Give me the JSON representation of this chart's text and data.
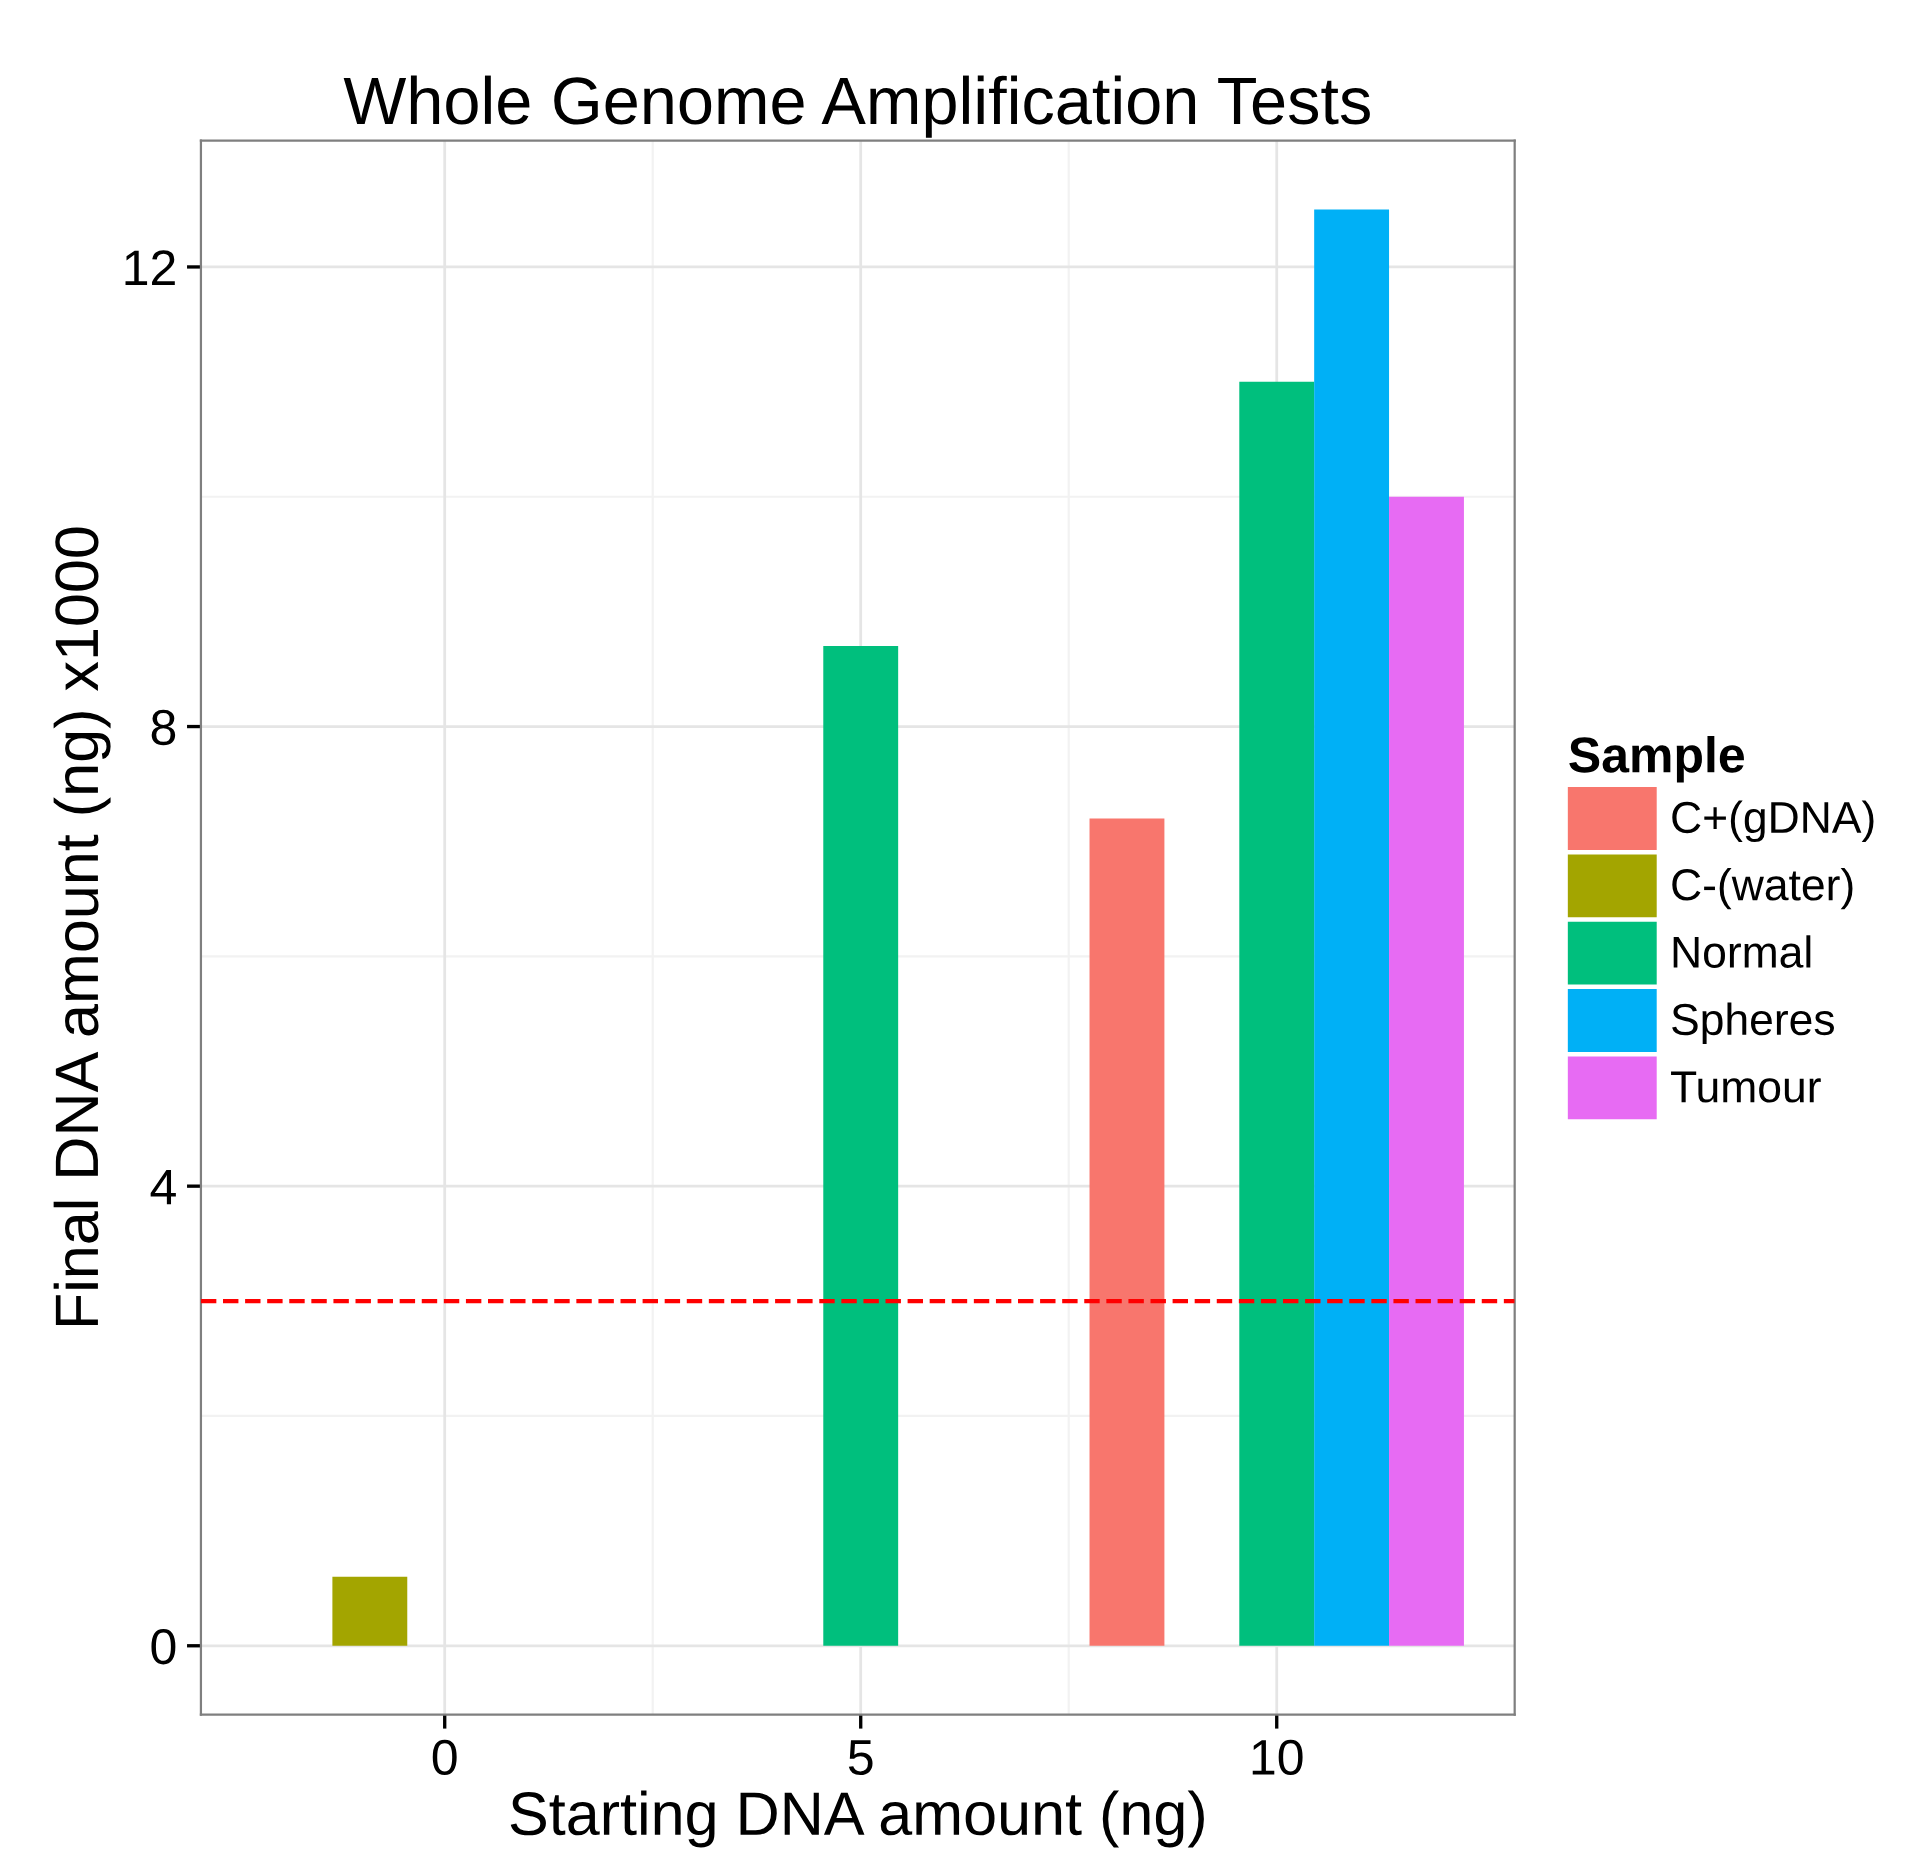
{
  "chart_data": {
    "type": "bar",
    "title": "Whole Genome Amplification Tests",
    "xlabel": "Starting DNA amount (ng)",
    "ylabel": "Final DNA amount (ng) x1000",
    "legend_title": "Sample",
    "legend": "right",
    "series": [
      {
        "name": "C+(gDNA)",
        "color": "#f8766d",
        "x": [
          -1.8,
          3.2,
          8.2
        ],
        "values": [
          0,
          0,
          7.2
        ]
      },
      {
        "name": "C-(water)",
        "color": "#a3a500",
        "x": [
          -0.9,
          4.1,
          9.1
        ],
        "values": [
          0.6,
          0,
          0
        ]
      },
      {
        "name": "Normal",
        "color": "#00bf7d",
        "x": [
          0,
          5,
          10
        ],
        "values": [
          0,
          8.7,
          11.0
        ]
      },
      {
        "name": "Spheres",
        "color": "#00b0f6",
        "x": [
          0.9,
          5.9,
          10.9
        ],
        "values": [
          0,
          0,
          12.5
        ]
      },
      {
        "name": "Tumour",
        "color": "#e76bf3",
        "x": [
          1.8,
          6.8,
          11.8
        ],
        "values": [
          0,
          0,
          10.0
        ]
      }
    ],
    "xlim": [
      -2.93,
      12.86
    ],
    "ylim": [
      -0.6,
      13.1
    ],
    "xticks": [
      0,
      5,
      10
    ],
    "yticks": [
      0,
      4,
      8,
      12
    ],
    "grid": true,
    "ref_lines": [
      {
        "axis": "y",
        "value": 3,
        "color": "#ff0000",
        "line_style": "dashed"
      }
    ]
  }
}
